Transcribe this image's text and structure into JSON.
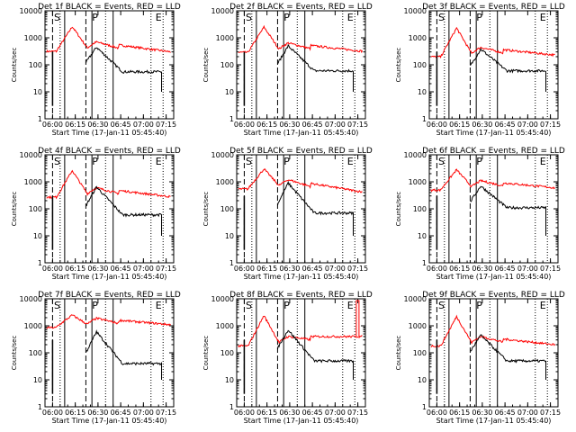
{
  "chart_data": {
    "type": "line",
    "scale": "log",
    "ylim": [
      1,
      10000
    ],
    "xlim_time": [
      "05:55",
      "07:20"
    ],
    "x_ticks": [
      "06:00",
      "06:15",
      "06:30",
      "06:45",
      "07:00",
      "07:15"
    ],
    "y_ticks": [
      "1",
      "10",
      "100",
      "1000",
      "10000"
    ],
    "xlabel": "Start Time (17-Jan-11 05:45:40)",
    "ylabel": "Counts/sec",
    "series_colors": {
      "events": "#000000",
      "lld": "#ff0000"
    },
    "markers": {
      "S": "06:03",
      "P": "06:28",
      "E": "07:10"
    },
    "vlines": {
      "dashed": [
        "06:00",
        "06:22"
      ],
      "solid": [
        "06:08",
        "06:26",
        "06:40"
      ],
      "dotted": [
        "06:05",
        "06:35",
        "07:05",
        "07:13"
      ]
    },
    "panels": [
      {
        "title": "Det 1f BLACK = Events, RED = LLD",
        "lld_base": 350,
        "lld_peak": 2600,
        "lld_end": 300,
        "ev_base": 120,
        "ev_peak": 450,
        "ev_end": 55,
        "lld_spike": false
      },
      {
        "title": "Det 2f BLACK = Events, RED = LLD",
        "lld_base": 320,
        "lld_peak": 2500,
        "lld_end": 320,
        "ev_base": 110,
        "ev_peak": 500,
        "ev_end": 60,
        "lld_spike": false
      },
      {
        "title": "Det 3f BLACK = Events, RED = LLD",
        "lld_base": 220,
        "lld_peak": 2300,
        "lld_end": 230,
        "ev_base": 90,
        "ev_peak": 380,
        "ev_end": 60,
        "lld_spike": false
      },
      {
        "title": "Det 4f BLACK = Events, RED = LLD",
        "lld_base": 300,
        "lld_peak": 2600,
        "lld_end": 280,
        "ev_base": 130,
        "ev_peak": 650,
        "ev_end": 60,
        "lld_spike": false
      },
      {
        "title": "Det 5f BLACK = Events, RED = LLD",
        "lld_base": 600,
        "lld_peak": 3000,
        "lld_end": 420,
        "ev_base": 150,
        "ev_peak": 900,
        "ev_end": 70,
        "lld_spike": false
      },
      {
        "title": "Det 6f BLACK = Events, RED = LLD",
        "lld_base": 550,
        "lld_peak": 2800,
        "lld_end": 600,
        "ev_base": 180,
        "ev_peak": 700,
        "ev_end": 110,
        "lld_spike": false
      },
      {
        "title": "Det 7f BLACK = Events, RED = LLD",
        "lld_base": 950,
        "lld_peak": 2500,
        "lld_end": 1100,
        "ev_base": 100,
        "ev_peak": 600,
        "ev_end": 40,
        "lld_spike": false
      },
      {
        "title": "Det 8f BLACK = Events, RED = LLD",
        "lld_base": 200,
        "lld_peak": 2400,
        "lld_end": 400,
        "ev_base": 150,
        "ev_peak": 700,
        "ev_end": 50,
        "lld_spike": true
      },
      {
        "title": "Det 9f BLACK = Events, RED = LLD",
        "lld_base": 200,
        "lld_peak": 2200,
        "lld_end": 200,
        "ev_base": 110,
        "ev_peak": 450,
        "ev_end": 50,
        "lld_spike": false
      }
    ]
  }
}
